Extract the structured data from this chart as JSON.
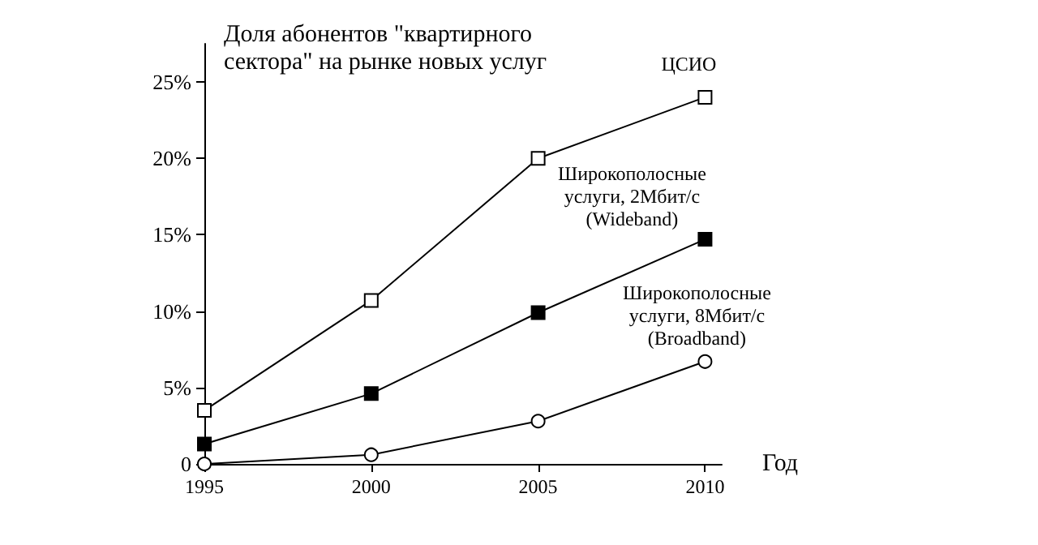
{
  "chart_data": {
    "type": "line",
    "title": "Доля абонентов \"квартирного\nсектора\" на рынке новых услуг",
    "xlabel": "Год",
    "x": [
      1995,
      2000,
      2005,
      2010
    ],
    "series": [
      {
        "name": "ЦСИО",
        "color": "#000000",
        "marker": "square",
        "values": [
          3.5,
          10.7,
          20,
          24
        ]
      },
      {
        "name": "Широкополосные\nуслуги, 2Мбит/с\n(Wideband)",
        "color": "#000000",
        "marker": "square",
        "values": [
          1.3,
          4.6,
          9.9,
          14.7
        ]
      },
      {
        "name": "Широкополосные\nуслуги, 8Мбит/с\n(Broadband)",
        "color": "#000000",
        "marker": "circle",
        "values": [
          0,
          0.6,
          2.8,
          6.7
        ]
      }
    ],
    "xlim": [
      1995,
      2010.5
    ],
    "xticks": [
      1995,
      2000,
      2005,
      2010
    ],
    "ylim": [
      0,
      27.5
    ],
    "yticks": [
      0,
      {
        "value": 5,
        "label": "5%"
      },
      {
        "value": 10,
        "label": "10%"
      },
      {
        "value": 15,
        "label": "15%"
      },
      {
        "value": 20,
        "label": "20%"
      },
      {
        "value": 25,
        "label": "25%"
      }
    ],
    "grid": false,
    "line_style": "solid"
  }
}
